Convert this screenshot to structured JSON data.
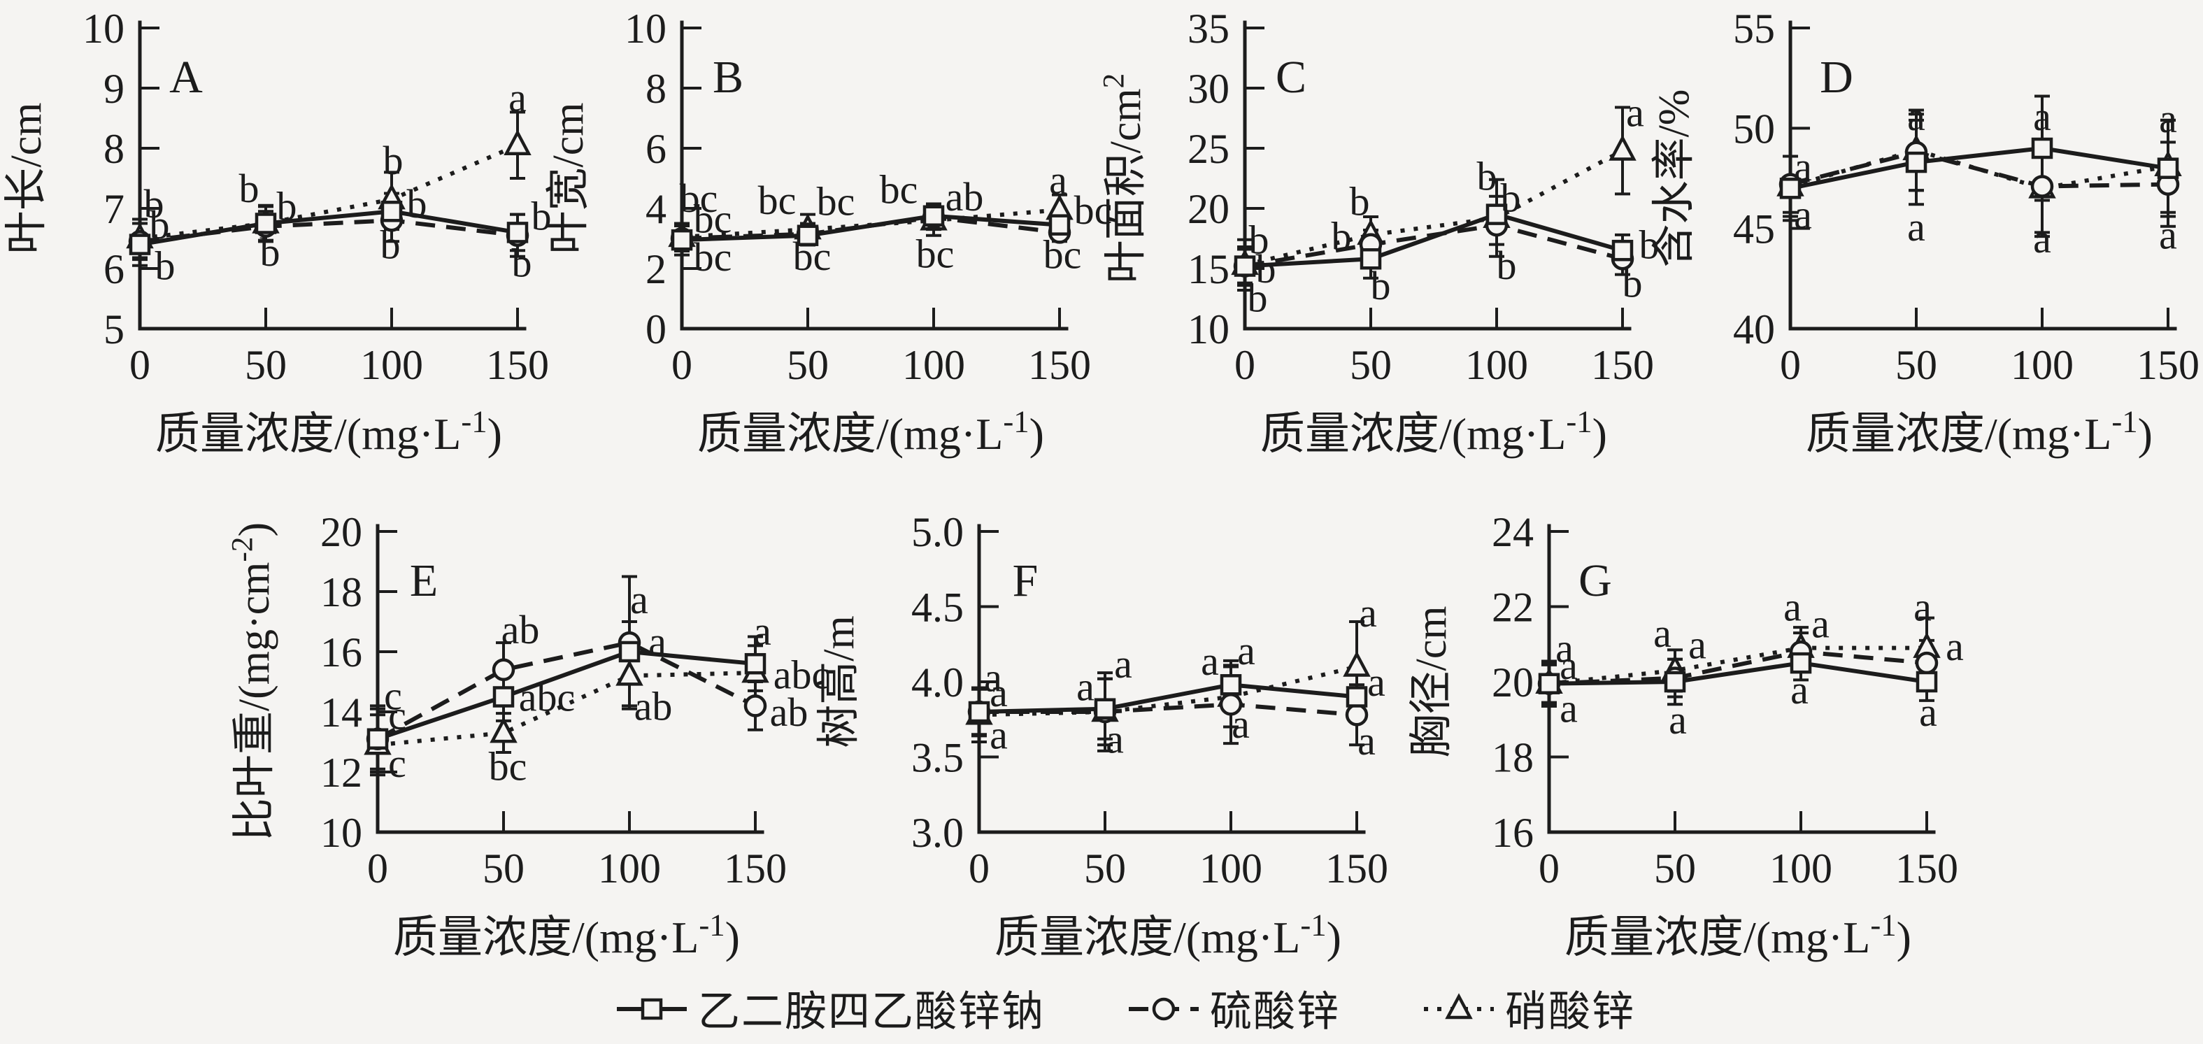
{
  "figure": {
    "background": "#f5f4f2",
    "ink": "#1c1c1c",
    "xlabel": "质量浓度/(mg·L⁻¹)",
    "x_tick_labels": [
      "0",
      "50",
      "100",
      "150"
    ]
  },
  "legend": {
    "items": [
      {
        "label": "乙二胺四乙酸锌钠",
        "marker": "square",
        "line": "solid"
      },
      {
        "label": "硫酸锌",
        "marker": "circle",
        "line": "dashed"
      },
      {
        "label": "硝酸锌",
        "marker": "triangle",
        "line": "dotted"
      }
    ]
  },
  "chart_data": [
    {
      "type": "line",
      "panel_label": "A",
      "ylabel": "叶长/cm",
      "xlabel": "质量浓度/(mg·L⁻¹)",
      "x": [
        0,
        50,
        100,
        150
      ],
      "ylim": [
        5,
        10
      ],
      "ytick_labels": [
        "5",
        "6",
        "7",
        "8",
        "9",
        "10"
      ],
      "series": [
        {
          "name": "乙二胺四乙酸锌钠",
          "marker": "square",
          "line": "solid",
          "values": [
            6.4,
            6.75,
            6.95,
            6.6
          ],
          "errors": [
            0.35,
            0.28,
            0.3,
            0.3
          ]
        },
        {
          "name": "硫酸锌",
          "marker": "circle",
          "line": "dashed",
          "values": [
            6.45,
            6.7,
            6.8,
            6.55
          ],
          "errors": [
            0.3,
            0.25,
            0.35,
            0.35
          ]
        },
        {
          "name": "硝酸锌",
          "marker": "triangle",
          "line": "dotted",
          "values": [
            6.5,
            6.75,
            7.15,
            8.05
          ],
          "errors": [
            0.32,
            0.3,
            0.45,
            0.55
          ]
        }
      ],
      "annotations": [
        {
          "x": 0,
          "y": 7.08,
          "dx": 20,
          "text": "b"
        },
        {
          "x": 0,
          "y": 6.73,
          "dx": 28,
          "text": "b"
        },
        {
          "x": 0,
          "y": 6.05,
          "dx": 36,
          "text": "b"
        },
        {
          "x": 50,
          "y": 7.34,
          "dx": -24,
          "text": "b"
        },
        {
          "x": 50,
          "y": 7.04,
          "dx": 30,
          "text": "b"
        },
        {
          "x": 50,
          "y": 6.28,
          "dx": 6,
          "text": "b"
        },
        {
          "x": 100,
          "y": 7.8,
          "dx": 2,
          "text": "b"
        },
        {
          "x": 100,
          "y": 7.08,
          "dx": 36,
          "text": "b"
        },
        {
          "x": 100,
          "y": 6.4,
          "dx": -2,
          "text": "b"
        },
        {
          "x": 150,
          "y": 8.85,
          "dx": 0,
          "text": "a"
        },
        {
          "x": 150,
          "y": 6.88,
          "dx": 34,
          "text": "b"
        },
        {
          "x": 150,
          "y": 6.1,
          "dx": 6,
          "text": "b"
        }
      ]
    },
    {
      "type": "line",
      "panel_label": "B",
      "ylabel": "叶宽/cm",
      "xlabel": "质量浓度/(mg·L⁻¹)",
      "x": [
        0,
        50,
        100,
        150
      ],
      "ylim": [
        0,
        10
      ],
      "ytick_labels": [
        "0",
        "2",
        "4",
        "6",
        "8",
        "10"
      ],
      "series": [
        {
          "name": "乙二胺四乙酸锌钠",
          "marker": "square",
          "line": "solid",
          "values": [
            2.95,
            3.1,
            3.75,
            3.45
          ],
          "errors": [
            0.5,
            0.32,
            0.4,
            0.35
          ]
        },
        {
          "name": "硫酸锌",
          "marker": "circle",
          "line": "dashed",
          "values": [
            3.0,
            3.15,
            3.7,
            3.2
          ],
          "errors": [
            0.42,
            0.35,
            0.4,
            0.3
          ]
        },
        {
          "name": "硝酸锌",
          "marker": "triangle",
          "line": "dotted",
          "values": [
            3.05,
            3.3,
            3.6,
            3.95
          ],
          "errors": [
            0.45,
            0.5,
            0.5,
            0.5
          ]
        }
      ],
      "annotations": [
        {
          "x": 0,
          "y": 4.35,
          "dx": 24,
          "text": "bc"
        },
        {
          "x": 0,
          "y": 3.66,
          "dx": 44,
          "text": "bc"
        },
        {
          "x": 0,
          "y": 2.4,
          "dx": 44,
          "text": "bc"
        },
        {
          "x": 50,
          "y": 4.28,
          "dx": -44,
          "text": "bc"
        },
        {
          "x": 50,
          "y": 4.24,
          "dx": 40,
          "text": "bc"
        },
        {
          "x": 50,
          "y": 2.42,
          "dx": 6,
          "text": "bc"
        },
        {
          "x": 100,
          "y": 4.64,
          "dx": -50,
          "text": "bc"
        },
        {
          "x": 100,
          "y": 4.4,
          "dx": 44,
          "text": "ab"
        },
        {
          "x": 100,
          "y": 2.5,
          "dx": 2,
          "text": "bc"
        },
        {
          "x": 150,
          "y": 4.95,
          "dx": -2,
          "text": "a"
        },
        {
          "x": 150,
          "y": 3.95,
          "dx": 48,
          "text": "bc"
        },
        {
          "x": 150,
          "y": 2.48,
          "dx": 4,
          "text": "bc"
        }
      ]
    },
    {
      "type": "line",
      "panel_label": "C",
      "ylabel": "叶面积/cm²",
      "xlabel": "质量浓度/(mg·L⁻¹)",
      "x": [
        0,
        50,
        100,
        150
      ],
      "ylim": [
        10,
        35
      ],
      "ytick_labels": [
        "10",
        "15",
        "20",
        "25",
        "30",
        "35"
      ],
      "series": [
        {
          "name": "乙二胺四乙酸锌钠",
          "marker": "square",
          "line": "solid",
          "values": [
            15.2,
            15.8,
            19.5,
            16.5
          ],
          "errors": [
            1.6,
            1.6,
            1.5,
            1.3
          ]
        },
        {
          "name": "硫酸锌",
          "marker": "circle",
          "line": "dashed",
          "values": [
            15.2,
            17.0,
            18.6,
            15.8
          ],
          "errors": [
            1.4,
            1.2,
            1.6,
            1.3
          ]
        },
        {
          "name": "硝酸锌",
          "marker": "triangle",
          "line": "dotted",
          "values": [
            15.3,
            17.8,
            19.2,
            24.8
          ],
          "errors": [
            2.1,
            1.5,
            3.2,
            3.6
          ]
        }
      ],
      "annotations": [
        {
          "x": 0,
          "y": 17.4,
          "dx": 20,
          "text": "b"
        },
        {
          "x": 0,
          "y": 15.0,
          "dx": 30,
          "text": "b"
        },
        {
          "x": 0,
          "y": 12.6,
          "dx": 18,
          "text": "b"
        },
        {
          "x": 50,
          "y": 20.6,
          "dx": -16,
          "text": "b"
        },
        {
          "x": 50,
          "y": 17.7,
          "dx": -42,
          "text": "b"
        },
        {
          "x": 50,
          "y": 13.6,
          "dx": 14,
          "text": "b"
        },
        {
          "x": 100,
          "y": 22.7,
          "dx": -14,
          "text": "b"
        },
        {
          "x": 100,
          "y": 20.9,
          "dx": 20,
          "text": "b"
        },
        {
          "x": 100,
          "y": 15.3,
          "dx": 14,
          "text": "b"
        },
        {
          "x": 150,
          "y": 28.0,
          "dx": 18,
          "text": "a"
        },
        {
          "x": 150,
          "y": 17.0,
          "dx": 38,
          "text": "b"
        },
        {
          "x": 150,
          "y": 13.8,
          "dx": 14,
          "text": "b"
        }
      ]
    },
    {
      "type": "line",
      "panel_label": "D",
      "ylabel": "含水率/%",
      "xlabel": "质量浓度/(mg·L⁻¹)",
      "x": [
        0,
        50,
        100,
        150
      ],
      "ylim": [
        40,
        55
      ],
      "ytick_labels": [
        "40",
        "45",
        "50",
        "55"
      ],
      "series": [
        {
          "name": "乙二胺四乙酸锌钠",
          "marker": "square",
          "line": "solid",
          "values": [
            47.0,
            48.3,
            49.0,
            48.0
          ],
          "errors": [
            1.6,
            2.1,
            2.6,
            2.4
          ]
        },
        {
          "name": "硫酸锌",
          "marker": "circle",
          "line": "dashed",
          "values": [
            47.2,
            48.8,
            47.1,
            47.2
          ],
          "errors": [
            1.4,
            1.9,
            2.3,
            2.1
          ]
        },
        {
          "name": "硝酸锌",
          "marker": "triangle",
          "line": "dotted",
          "values": [
            47.1,
            48.9,
            47.0,
            48.1
          ],
          "errors": [
            1.5,
            2.0,
            2.4,
            2.3
          ]
        }
      ],
      "annotations": [
        {
          "x": 0,
          "y": 48.1,
          "dx": 18,
          "text": "a"
        },
        {
          "x": 0,
          "y": 45.7,
          "dx": 18,
          "text": "a"
        },
        {
          "x": 50,
          "y": 50.6,
          "dx": 0,
          "text": "a"
        },
        {
          "x": 50,
          "y": 45.1,
          "dx": 0,
          "text": "a"
        },
        {
          "x": 100,
          "y": 50.6,
          "dx": 0,
          "text": "a"
        },
        {
          "x": 100,
          "y": 44.5,
          "dx": 0,
          "text": "a"
        },
        {
          "x": 150,
          "y": 50.5,
          "dx": 0,
          "text": "a"
        },
        {
          "x": 150,
          "y": 44.7,
          "dx": 0,
          "text": "a"
        }
      ]
    },
    {
      "type": "line",
      "panel_label": "E",
      "ylabel": "比叶重/(mg·cm⁻²)",
      "xlabel": "质量浓度/(mg·L⁻¹)",
      "x": [
        0,
        50,
        100,
        150
      ],
      "ylim": [
        10,
        20
      ],
      "ytick_labels": [
        "10",
        "12",
        "14",
        "16",
        "18",
        "20"
      ],
      "series": [
        {
          "name": "乙二胺四乙酸锌钠",
          "marker": "square",
          "line": "solid",
          "values": [
            13.1,
            14.5,
            16.0,
            15.6
          ],
          "errors": [
            1.1,
            0.8,
            1.0,
            0.9
          ]
        },
        {
          "name": "硫酸锌",
          "marker": "circle",
          "line": "dashed",
          "values": [
            13.1,
            15.4,
            16.3,
            14.2
          ],
          "errors": [
            1.0,
            0.9,
            2.2,
            0.8
          ]
        },
        {
          "name": "硝酸锌",
          "marker": "triangle",
          "line": "dotted",
          "values": [
            12.9,
            13.3,
            15.2,
            15.3
          ],
          "errors": [
            1.0,
            0.65,
            1.0,
            0.9
          ]
        }
      ],
      "annotations": [
        {
          "x": 0,
          "y": 14.55,
          "dx": 22,
          "text": "c"
        },
        {
          "x": 0,
          "y": 13.9,
          "dx": 28,
          "text": "c"
        },
        {
          "x": 0,
          "y": 12.3,
          "dx": 28,
          "text": "c"
        },
        {
          "x": 50,
          "y": 16.75,
          "dx": 24,
          "text": "ab"
        },
        {
          "x": 50,
          "y": 14.5,
          "dx": 62,
          "text": "abc"
        },
        {
          "x": 50,
          "y": 12.2,
          "dx": 6,
          "text": "bc"
        },
        {
          "x": 100,
          "y": 17.75,
          "dx": 14,
          "text": "a"
        },
        {
          "x": 100,
          "y": 16.35,
          "dx": 40,
          "text": "a"
        },
        {
          "x": 100,
          "y": 14.2,
          "dx": 34,
          "text": "ab"
        },
        {
          "x": 150,
          "y": 16.7,
          "dx": 10,
          "text": "a"
        },
        {
          "x": 150,
          "y": 15.25,
          "dx": 66,
          "text": "abc"
        },
        {
          "x": 150,
          "y": 14.0,
          "dx": 48,
          "text": "ab"
        }
      ]
    },
    {
      "type": "line",
      "panel_label": "F",
      "ylabel": "树高/m",
      "xlabel": "质量浓度/(mg·L⁻¹)",
      "x": [
        0,
        50,
        100,
        150
      ],
      "ylim": [
        3.0,
        5.0
      ],
      "ytick_labels": [
        "3.0",
        "3.5",
        "4.0",
        "4.5",
        "5.0"
      ],
      "series": [
        {
          "name": "乙二胺四乙酸锌钠",
          "marker": "square",
          "line": "solid",
          "values": [
            3.8,
            3.82,
            3.98,
            3.9
          ],
          "errors": [
            0.16,
            0.2,
            0.16,
            0.15
          ]
        },
        {
          "name": "硫酸锌",
          "marker": "circle",
          "line": "dashed",
          "values": [
            3.8,
            3.8,
            3.85,
            3.78
          ],
          "errors": [
            0.15,
            0.26,
            0.26,
            0.2
          ]
        },
        {
          "name": "硝酸锌",
          "marker": "triangle",
          "line": "dotted",
          "values": [
            3.78,
            3.8,
            3.9,
            4.1
          ],
          "errors": [
            0.18,
            0.22,
            0.2,
            0.3
          ]
        }
      ],
      "annotations": [
        {
          "x": 0,
          "y": 4.03,
          "dx": 20,
          "text": "a"
        },
        {
          "x": 0,
          "y": 3.93,
          "dx": 28,
          "text": "a"
        },
        {
          "x": 0,
          "y": 3.65,
          "dx": 28,
          "text": "a"
        },
        {
          "x": 50,
          "y": 4.12,
          "dx": 26,
          "text": "a"
        },
        {
          "x": 50,
          "y": 3.97,
          "dx": -28,
          "text": "a"
        },
        {
          "x": 50,
          "y": 3.62,
          "dx": 14,
          "text": "a"
        },
        {
          "x": 100,
          "y": 4.14,
          "dx": -30,
          "text": "a"
        },
        {
          "x": 100,
          "y": 4.21,
          "dx": 22,
          "text": "a"
        },
        {
          "x": 100,
          "y": 3.72,
          "dx": 14,
          "text": "a"
        },
        {
          "x": 150,
          "y": 4.46,
          "dx": 16,
          "text": "a"
        },
        {
          "x": 150,
          "y": 4.0,
          "dx": 28,
          "text": "a"
        },
        {
          "x": 150,
          "y": 3.61,
          "dx": 14,
          "text": "a"
        }
      ]
    },
    {
      "type": "line",
      "panel_label": "G",
      "ylabel": "胸径/cm",
      "xlabel": "质量浓度/(mg·L⁻¹)",
      "x": [
        0,
        50,
        100,
        150
      ],
      "ylim": [
        16,
        24
      ],
      "ytick_labels": [
        "16",
        "18",
        "20",
        "22",
        "24"
      ],
      "series": [
        {
          "name": "乙二胺四乙酸锌钠",
          "marker": "square",
          "line": "solid",
          "values": [
            19.95,
            20.0,
            20.5,
            20.0
          ],
          "errors": [
            0.55,
            0.6,
            0.45,
            0.5
          ]
        },
        {
          "name": "硫酸锌",
          "marker": "circle",
          "line": "dashed",
          "values": [
            19.95,
            20.1,
            20.8,
            20.5
          ],
          "errors": [
            0.5,
            0.5,
            0.5,
            0.6
          ]
        },
        {
          "name": "硝酸锌",
          "marker": "triangle",
          "line": "dotted",
          "values": [
            19.95,
            20.3,
            20.9,
            20.9
          ],
          "errors": [
            0.6,
            0.55,
            0.55,
            0.8
          ]
        }
      ],
      "annotations": [
        {
          "x": 0,
          "y": 20.9,
          "dx": 22,
          "text": "a"
        },
        {
          "x": 0,
          "y": 20.45,
          "dx": 28,
          "text": "a"
        },
        {
          "x": 0,
          "y": 19.3,
          "dx": 28,
          "text": "a"
        },
        {
          "x": 50,
          "y": 21.3,
          "dx": -18,
          "text": "a"
        },
        {
          "x": 50,
          "y": 21.0,
          "dx": 32,
          "text": "a"
        },
        {
          "x": 50,
          "y": 19.0,
          "dx": 4,
          "text": "a"
        },
        {
          "x": 100,
          "y": 22.0,
          "dx": -12,
          "text": "a"
        },
        {
          "x": 100,
          "y": 21.55,
          "dx": 28,
          "text": "a"
        },
        {
          "x": 100,
          "y": 19.8,
          "dx": -2,
          "text": "a"
        },
        {
          "x": 150,
          "y": 22.0,
          "dx": -6,
          "text": "a"
        },
        {
          "x": 150,
          "y": 20.95,
          "dx": 40,
          "text": "a"
        },
        {
          "x": 150,
          "y": 19.2,
          "dx": 2,
          "text": "a"
        }
      ]
    }
  ]
}
